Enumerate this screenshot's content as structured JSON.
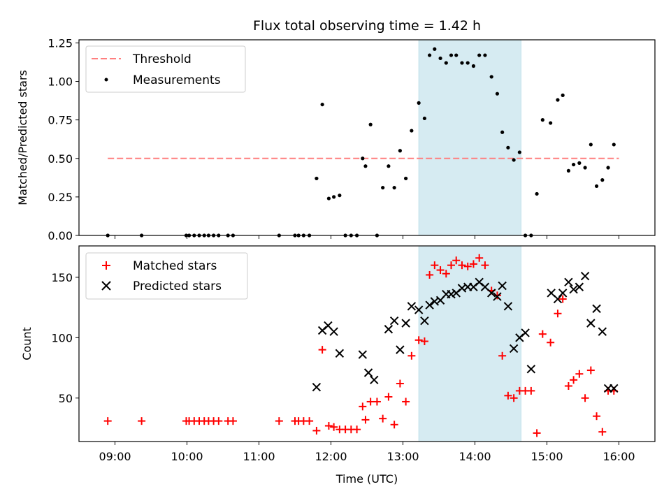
{
  "figure": {
    "title": "Flux total observing time = 1.42 h",
    "xlabel": "Time (UTC)",
    "x_unit": "hours UTC (decimal)",
    "xlim": [
      8.5,
      16.5
    ],
    "x_ticks": [
      9,
      10,
      11,
      12,
      13,
      14,
      15,
      16
    ],
    "x_tick_labels": [
      "09:00",
      "10:00",
      "11:00",
      "12:00",
      "13:00",
      "14:00",
      "15:00",
      "16:00"
    ],
    "shaded_interval": [
      13.22,
      14.64
    ],
    "shade_color": "#add8e6"
  },
  "chart_data": [
    {
      "type": "scatter",
      "panel": "top",
      "ylabel": "Matched/Predicted stars",
      "ylim": [
        0,
        1.27
      ],
      "y_ticks": [
        0.0,
        0.25,
        0.5,
        0.75,
        1.0,
        1.25
      ],
      "y_tick_labels": [
        "0.00",
        "0.25",
        "0.50",
        "0.75",
        "1.00",
        "1.25"
      ],
      "legend_position": "upper-left",
      "threshold": {
        "name": "Threshold",
        "y": 0.5,
        "x_range": [
          8.9,
          16.0
        ],
        "color": "#ff7f7f",
        "style": "dashed"
      },
      "series": [
        {
          "name": "Measurements",
          "color": "#000000",
          "marker": "dot",
          "x": [
            8.9,
            9.37,
            9.99,
            10.03,
            10.1,
            10.17,
            10.24,
            10.3,
            10.37,
            10.44,
            10.57,
            10.64,
            11.28,
            11.5,
            11.55,
            11.62,
            11.7,
            11.8,
            11.88,
            11.97,
            12.04,
            12.12,
            12.2,
            12.28,
            12.36,
            12.44,
            12.48,
            12.55,
            12.64,
            12.72,
            12.8,
            12.88,
            12.96,
            13.04,
            13.12,
            13.22,
            13.3,
            13.37,
            13.44,
            13.52,
            13.6,
            13.67,
            13.74,
            13.82,
            13.9,
            13.98,
            14.06,
            14.14,
            14.23,
            14.31,
            14.38,
            14.46,
            14.54,
            14.62,
            14.7,
            14.78,
            14.86,
            14.94,
            15.05,
            15.15,
            15.22,
            15.3,
            15.37,
            15.45,
            15.53,
            15.61,
            15.69,
            15.77,
            15.85,
            15.93
          ],
          "y": [
            0.0,
            0.0,
            0.0,
            0.0,
            0.0,
            0.0,
            0.0,
            0.0,
            0.0,
            0.0,
            0.0,
            0.0,
            0.0,
            0.0,
            0.0,
            0.0,
            0.0,
            0.37,
            0.85,
            0.24,
            0.25,
            0.26,
            0.0,
            0.0,
            0.0,
            0.5,
            0.45,
            0.72,
            0.0,
            0.31,
            0.45,
            0.31,
            0.55,
            0.37,
            0.68,
            0.86,
            0.76,
            1.17,
            1.21,
            1.15,
            1.12,
            1.17,
            1.17,
            1.12,
            1.12,
            1.1,
            1.17,
            1.17,
            1.03,
            0.92,
            0.67,
            0.57,
            0.49,
            0.54,
            0.0,
            0.0,
            0.27,
            0.75,
            0.73,
            0.88,
            0.91,
            0.42,
            0.46,
            0.47,
            0.44,
            0.59,
            0.32,
            0.36,
            0.44,
            0.59
          ]
        }
      ]
    },
    {
      "type": "scatter",
      "panel": "bottom",
      "ylabel": "Count",
      "ylim": [
        14,
        176
      ],
      "y_ticks": [
        50,
        100,
        150
      ],
      "y_tick_labels": [
        "50",
        "100",
        "150"
      ],
      "legend_position": "upper-left",
      "series": [
        {
          "name": "Matched stars",
          "color": "#ff0000",
          "marker": "plus",
          "x": [
            8.9,
            9.37,
            9.99,
            10.03,
            10.1,
            10.17,
            10.24,
            10.3,
            10.37,
            10.44,
            10.57,
            10.64,
            11.28,
            11.5,
            11.55,
            11.62,
            11.7,
            11.8,
            11.88,
            11.97,
            12.04,
            12.12,
            12.2,
            12.28,
            12.36,
            12.44,
            12.48,
            12.55,
            12.64,
            12.72,
            12.8,
            12.88,
            12.96,
            13.04,
            13.12,
            13.22,
            13.3,
            13.37,
            13.44,
            13.52,
            13.6,
            13.67,
            13.74,
            13.82,
            13.9,
            13.98,
            14.06,
            14.14,
            14.23,
            14.31,
            14.38,
            14.46,
            14.54,
            14.62,
            14.7,
            14.78,
            14.86,
            14.94,
            15.05,
            15.15,
            15.22,
            15.3,
            15.37,
            15.45,
            15.53,
            15.61,
            15.69,
            15.77,
            15.85,
            15.93
          ],
          "y": [
            31,
            31,
            31,
            31,
            31,
            31,
            31,
            31,
            31,
            31,
            31,
            31,
            31,
            31,
            31,
            31,
            31,
            23,
            90,
            27,
            26,
            24,
            24,
            24,
            24,
            43,
            32,
            47,
            47,
            33,
            51,
            28,
            62,
            47,
            85,
            98,
            97,
            152,
            160,
            156,
            153,
            160,
            164,
            160,
            159,
            161,
            166,
            160,
            139,
            135,
            85,
            52,
            50,
            56,
            56,
            56,
            21,
            103,
            96,
            120,
            132,
            60,
            65,
            70,
            50,
            73,
            35,
            22,
            56,
            56
          ]
        },
        {
          "name": "Predicted stars",
          "color": "#000000",
          "marker": "x",
          "x": [
            11.8,
            11.88,
            11.96,
            12.04,
            12.12,
            12.44,
            12.52,
            12.6,
            12.8,
            12.88,
            12.96,
            13.04,
            13.12,
            13.22,
            13.3,
            13.37,
            13.44,
            13.52,
            13.6,
            13.67,
            13.74,
            13.82,
            13.9,
            13.98,
            14.06,
            14.14,
            14.23,
            14.31,
            14.38,
            14.46,
            14.54,
            14.62,
            14.7,
            14.78,
            15.06,
            15.15,
            15.22,
            15.3,
            15.37,
            15.45,
            15.53,
            15.61,
            15.69,
            15.77,
            15.85,
            15.93
          ],
          "y": [
            59,
            106,
            110,
            105,
            87,
            86,
            71,
            65,
            107,
            114,
            90,
            112,
            126,
            123,
            114,
            127,
            130,
            131,
            136,
            136,
            137,
            141,
            142,
            142,
            146,
            142,
            137,
            134,
            143,
            126,
            91,
            100,
            104,
            74,
            137,
            132,
            137,
            146,
            140,
            142,
            151,
            112,
            124,
            105,
            58,
            58
          ]
        }
      ]
    }
  ]
}
